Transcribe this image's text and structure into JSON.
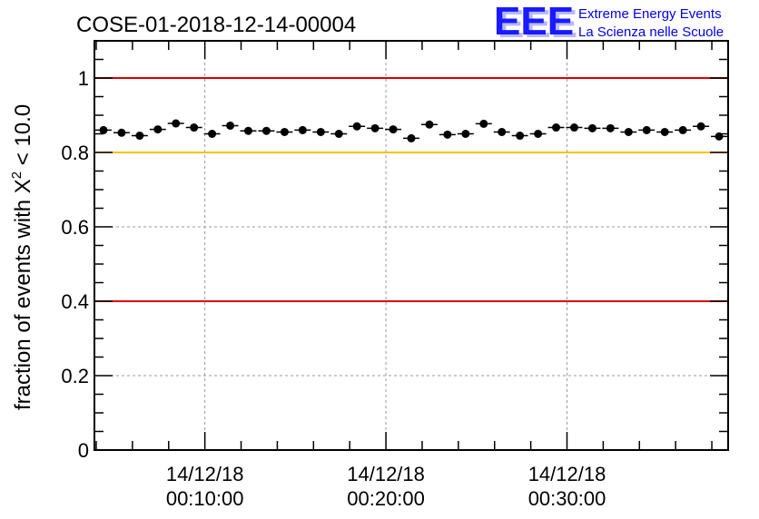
{
  "chart_data": {
    "type": "scatter",
    "title": "COSE-01-2018-12-14-00004",
    "ylabel": {
      "prefix": "fraction of events with ",
      "chi": "X",
      "sup": "2",
      "suffix": " < 10.0"
    },
    "xlabel": "",
    "ylim": [
      0,
      1.1
    ],
    "yticks": [
      {
        "value": 0,
        "label": "0"
      },
      {
        "value": 0.2,
        "label": "0.2"
      },
      {
        "value": 0.4,
        "label": "0.4"
      },
      {
        "value": 0.6,
        "label": "0.6"
      },
      {
        "value": 0.8,
        "label": "0.8"
      },
      {
        "value": 1.0,
        "label": "1"
      }
    ],
    "xlim_minutes": [
      3.9,
      38.9
    ],
    "xticks": [
      {
        "value": 10,
        "date": "14/12/18",
        "time": "00:10:00"
      },
      {
        "value": 20,
        "date": "14/12/18",
        "time": "00:20:00"
      },
      {
        "value": 30,
        "date": "14/12/18",
        "time": "00:30:00"
      }
    ],
    "grid": true,
    "reference_lines": [
      {
        "name": "upper-limit",
        "y": 1.0,
        "color": "#e00000"
      },
      {
        "name": "threshold",
        "y": 0.8,
        "color": "#ffc000"
      },
      {
        "name": "lower-limit",
        "y": 0.4,
        "color": "#e00000"
      }
    ],
    "points": {
      "x_start": 4.4,
      "x_step": 1.0,
      "half_width": 0.45,
      "y": [
        0.86,
        0.853,
        0.845,
        0.862,
        0.878,
        0.867,
        0.85,
        0.872,
        0.858,
        0.858,
        0.855,
        0.86,
        0.855,
        0.85,
        0.87,
        0.865,
        0.862,
        0.838,
        0.875,
        0.848,
        0.85,
        0.877,
        0.855,
        0.845,
        0.85,
        0.867,
        0.867,
        0.865,
        0.865,
        0.855,
        0.86,
        0.855,
        0.86,
        0.87,
        0.843
      ]
    },
    "colors": {
      "marker": "#000000",
      "grid": "#9a9a9a",
      "axis": "#000000"
    }
  },
  "logo": {
    "mark": "EEE",
    "line1": "Extreme Energy Events",
    "line2": "La Scienza nelle Scuole"
  }
}
